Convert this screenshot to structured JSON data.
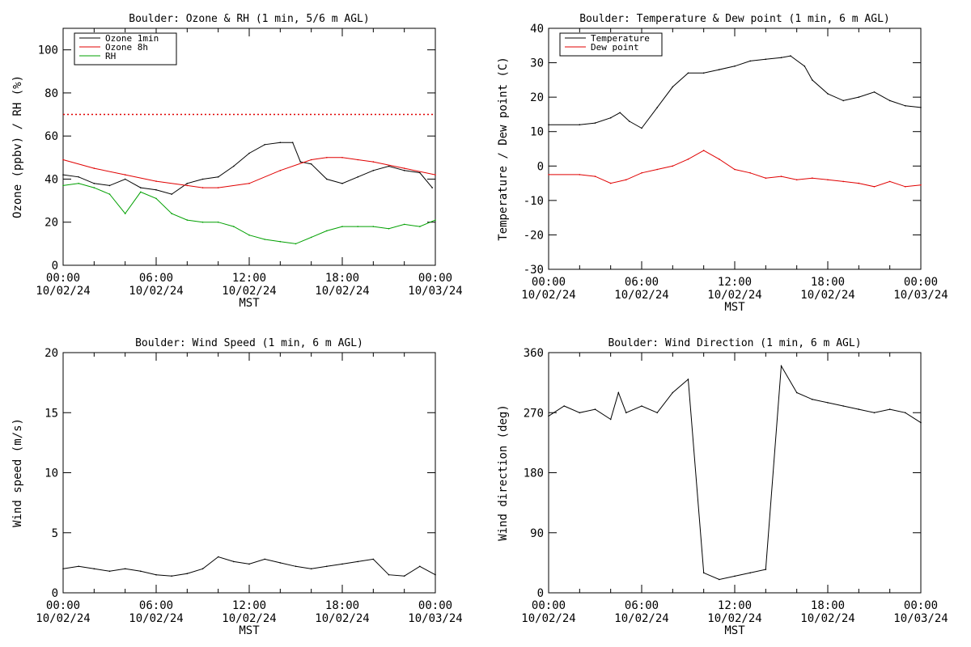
{
  "figure": {
    "x_label": "MST",
    "x_ticks": [
      "00:00",
      "06:00",
      "12:00",
      "18:00",
      "00:00"
    ],
    "x_dates": [
      "10/02/24",
      "10/02/24",
      "10/02/24",
      "10/02/24",
      "10/03/24"
    ],
    "x_range_hours": [
      0,
      24
    ]
  },
  "chart_data": [
    {
      "type": "line",
      "title": "Boulder: Ozone & RH (1 min, 5/6 m AGL)",
      "ylabel": "Ozone (ppbv) / RH (%)",
      "ylim": [
        0,
        110
      ],
      "yticks": [
        0,
        20,
        40,
        60,
        80,
        100
      ],
      "xlabel": "MST",
      "legend_position": "top-left",
      "colors": {
        "Ozone 1min": "#000000",
        "Ozone 8h": "#e00000",
        "RH": "#00a000",
        "threshold": "#e00000"
      },
      "reference_line": {
        "y": 70,
        "style": "dotted",
        "color": "#e00000"
      },
      "series": [
        {
          "name": "Ozone 1min",
          "color": "#000000",
          "x": [
            0,
            1,
            2,
            3,
            4,
            5,
            6,
            7,
            8,
            9,
            10,
            11,
            12,
            13,
            14,
            14.8,
            15.3,
            16,
            17,
            18,
            19,
            20,
            21,
            22,
            23,
            23.8
          ],
          "y": [
            42,
            41,
            38,
            37,
            40,
            36,
            35,
            33,
            38,
            40,
            41,
            46,
            52,
            56,
            57,
            57,
            48,
            47,
            40,
            38,
            41,
            44,
            46,
            44,
            43,
            36
          ]
        },
        {
          "name": "Ozone 8h",
          "color": "#e00000",
          "x": [
            0,
            2,
            4,
            6,
            8,
            9,
            10,
            12,
            14,
            16,
            17,
            18,
            19,
            20,
            22,
            24
          ],
          "y": [
            49,
            45,
            42,
            39,
            37,
            36,
            36,
            38,
            44,
            49,
            50,
            50,
            49,
            48,
            45,
            42
          ]
        },
        {
          "name": "RH",
          "color": "#00a000",
          "x": [
            0,
            1,
            2,
            3,
            4,
            5,
            6,
            7,
            8,
            9,
            10,
            11,
            12,
            13,
            14,
            15,
            16,
            17,
            18,
            19,
            20,
            21,
            22,
            23,
            24
          ],
          "y": [
            37,
            38,
            36,
            33,
            24,
            34,
            31,
            24,
            21,
            20,
            20,
            18,
            14,
            12,
            11,
            10,
            13,
            16,
            18,
            18,
            18,
            17,
            19,
            18,
            21
          ]
        }
      ]
    },
    {
      "type": "line",
      "title": "Boulder: Temperature & Dew point (1 min, 6 m AGL)",
      "ylabel": "Temperature / Dew point (C)",
      "ylim": [
        -30,
        40
      ],
      "yticks": [
        -30,
        -20,
        -10,
        0,
        10,
        20,
        30,
        40
      ],
      "xlabel": "MST",
      "legend_position": "top-left",
      "colors": {
        "Temperature": "#000000",
        "Dew point": "#e00000"
      },
      "series": [
        {
          "name": "Temperature",
          "color": "#000000",
          "x": [
            0,
            2,
            3,
            4,
            4.6,
            5.2,
            6,
            7,
            8,
            9,
            10,
            11,
            12,
            13,
            14,
            15,
            15.6,
            16.5,
            17,
            18,
            19,
            20,
            21,
            22,
            23,
            24
          ],
          "y": [
            12,
            12,
            12.5,
            14,
            15.5,
            13,
            11,
            17,
            23,
            27,
            27,
            28,
            29,
            30.5,
            31,
            31.5,
            32,
            29,
            25,
            21,
            19,
            20,
            21.5,
            19,
            17.5,
            17
          ]
        },
        {
          "name": "Dew point",
          "color": "#e00000",
          "x": [
            0,
            2,
            3,
            4,
            5,
            6,
            7,
            8,
            9,
            10,
            11,
            12,
            13,
            14,
            15,
            16,
            17,
            18,
            19,
            20,
            21,
            22,
            23,
            24
          ],
          "y": [
            -2.5,
            -2.5,
            -3,
            -5,
            -4,
            -2,
            -1,
            0,
            2,
            4.5,
            2,
            -1,
            -2,
            -3.5,
            -3,
            -4,
            -3.5,
            -4,
            -4.5,
            -5,
            -6,
            -4.5,
            -6,
            -5.5
          ]
        }
      ]
    },
    {
      "type": "line",
      "title": "Boulder: Wind Speed (1 min, 6 m AGL)",
      "ylabel": "Wind speed (m/s)",
      "ylim": [
        0,
        20
      ],
      "yticks": [
        0,
        5,
        10,
        15,
        20
      ],
      "xlabel": "MST",
      "colors": {
        "Wind speed": "#000000"
      },
      "series": [
        {
          "name": "",
          "x": [
            0,
            1,
            2,
            3,
            4,
            5,
            6,
            7,
            8,
            9,
            10,
            11,
            12,
            13,
            14,
            15,
            16,
            17,
            18,
            19,
            20,
            21,
            22,
            23,
            24
          ],
          "y": [
            2,
            2.2,
            2,
            1.8,
            2,
            1.8,
            1.5,
            1.4,
            1.6,
            2,
            3,
            2.6,
            2.4,
            2.8,
            2.5,
            2.2,
            2,
            2.2,
            2.4,
            2.6,
            2.8,
            1.5,
            1.4,
            2.2,
            1.5
          ]
        }
      ]
    },
    {
      "type": "line",
      "title": "Boulder: Wind Direction (1 min, 6 m AGL)",
      "ylabel": "Wind direction (deg)",
      "ylim": [
        0,
        360
      ],
      "yticks": [
        0,
        90,
        180,
        270,
        360
      ],
      "xlabel": "MST",
      "colors": {
        "Wind direction": "#000000"
      },
      "series": [
        {
          "name": "",
          "x": [
            0,
            1,
            2,
            3,
            4,
            4.5,
            5,
            6,
            7,
            8,
            9,
            10,
            11,
            12,
            13,
            14,
            15,
            16,
            17,
            18,
            19,
            20,
            21,
            22,
            23,
            24
          ],
          "y": [
            265,
            280,
            270,
            275,
            260,
            300,
            270,
            280,
            270,
            300,
            320,
            30,
            20,
            25,
            30,
            35,
            340,
            300,
            290,
            285,
            280,
            275,
            270,
            275,
            270,
            255
          ]
        }
      ]
    }
  ]
}
